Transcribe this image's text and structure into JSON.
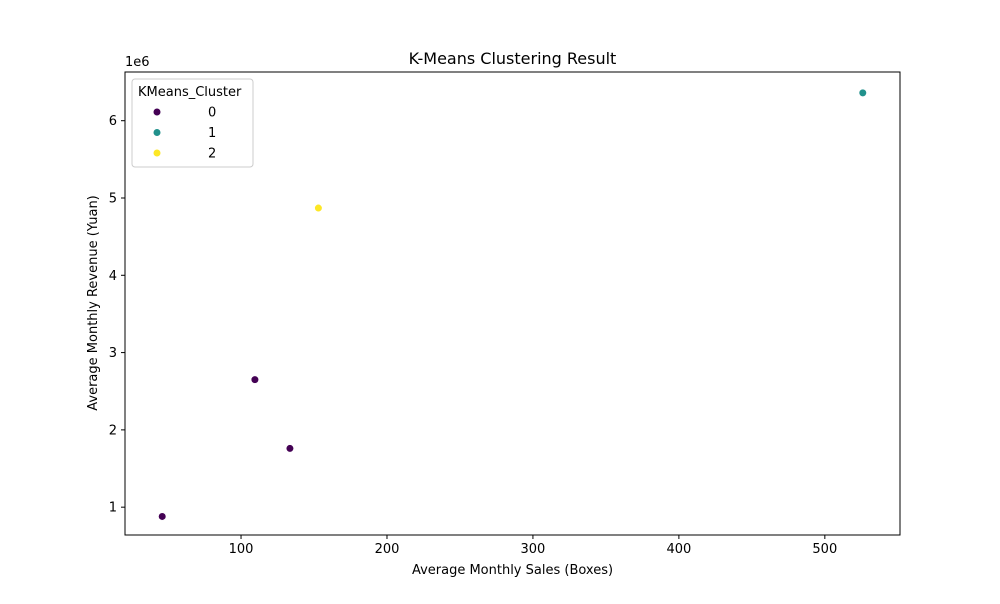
{
  "chart_data": {
    "type": "scatter",
    "title": "K-Means Clustering Result",
    "xlabel": "Average Monthly Sales (Boxes)",
    "ylabel": "Average Monthly Revenue (Yuan)",
    "y_offset_label": "1e6",
    "xlim": [
      20.5,
      551.5
    ],
    "ylim": [
      0.64,
      6.63
    ],
    "x_ticks": [
      100,
      200,
      300,
      400,
      500
    ],
    "y_ticks": [
      1,
      2,
      3,
      4,
      5,
      6
    ],
    "grid": false,
    "legend": {
      "title": "KMeans_Cluster",
      "placement": "top-left",
      "entries": [
        {
          "label": "0",
          "color": "#440154"
        },
        {
          "label": "1",
          "color": "#21918c"
        },
        {
          "label": "2",
          "color": "#fde725"
        }
      ]
    },
    "points": [
      {
        "x": 46,
        "y": 0.88,
        "cluster": "0"
      },
      {
        "x": 109.5,
        "y": 2.65,
        "cluster": "0"
      },
      {
        "x": 133.5,
        "y": 1.76,
        "cluster": "0"
      },
      {
        "x": 153,
        "y": 4.87,
        "cluster": "2"
      },
      {
        "x": 526,
        "y": 6.36,
        "cluster": "1"
      }
    ]
  }
}
